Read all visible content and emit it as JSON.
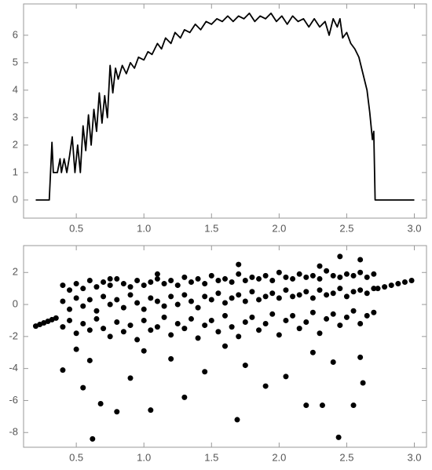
{
  "chart_data": [
    {
      "type": "line",
      "color": "#000000",
      "x": [
        0.2,
        0.3,
        0.32,
        0.33,
        0.36,
        0.38,
        0.39,
        0.41,
        0.43,
        0.45,
        0.47,
        0.49,
        0.51,
        0.53,
        0.55,
        0.57,
        0.59,
        0.61,
        0.63,
        0.65,
        0.67,
        0.69,
        0.71,
        0.73,
        0.75,
        0.77,
        0.79,
        0.81,
        0.84,
        0.87,
        0.9,
        0.93,
        0.96,
        1.0,
        1.03,
        1.06,
        1.1,
        1.13,
        1.16,
        1.2,
        1.23,
        1.27,
        1.3,
        1.34,
        1.38,
        1.42,
        1.46,
        1.5,
        1.54,
        1.58,
        1.62,
        1.66,
        1.7,
        1.74,
        1.78,
        1.82,
        1.86,
        1.9,
        1.94,
        1.98,
        2.02,
        2.06,
        2.1,
        2.14,
        2.18,
        2.22,
        2.26,
        2.3,
        2.34,
        2.37,
        2.4,
        2.43,
        2.45,
        2.47,
        2.5,
        2.53,
        2.56,
        2.59,
        2.62,
        2.65,
        2.67,
        2.69,
        2.7,
        2.71,
        3.0
      ],
      "values": [
        0,
        0,
        2.1,
        1.0,
        1.0,
        1.5,
        1.0,
        1.5,
        1.0,
        1.6,
        2.3,
        1.0,
        2.0,
        1.0,
        2.7,
        1.8,
        3.1,
        2.0,
        3.3,
        2.5,
        3.9,
        2.8,
        3.8,
        3.0,
        4.9,
        3.9,
        4.8,
        4.4,
        4.9,
        4.6,
        5.0,
        4.8,
        5.2,
        5.1,
        5.4,
        5.3,
        5.7,
        5.5,
        5.9,
        5.7,
        6.1,
        5.9,
        6.2,
        6.1,
        6.4,
        6.2,
        6.5,
        6.4,
        6.6,
        6.5,
        6.7,
        6.5,
        6.7,
        6.6,
        6.8,
        6.5,
        6.7,
        6.6,
        6.8,
        6.5,
        6.7,
        6.4,
        6.7,
        6.5,
        6.6,
        6.3,
        6.6,
        6.3,
        6.5,
        6.0,
        6.6,
        6.3,
        6.6,
        5.9,
        6.1,
        5.7,
        5.5,
        5.2,
        4.6,
        4.0,
        3.2,
        2.2,
        2.5,
        0,
        0
      ],
      "xlim": [
        0.11,
        3.09
      ],
      "ylim": [
        -0.66,
        7.14
      ],
      "xticks": [
        0.5,
        {
          "value": 1,
          "label": "1.0"
        },
        1.5,
        {
          "value": 2,
          "label": "2.0"
        },
        2.5,
        {
          "value": 3,
          "label": "3.0"
        }
      ],
      "yticks": [
        0,
        1,
        2,
        3,
        4,
        5,
        6
      ]
    },
    {
      "type": "scatter",
      "color": "#000000",
      "x": [
        0.4,
        0.45,
        0.5,
        0.55,
        0.6,
        0.65,
        0.7,
        0.75,
        0.8,
        0.85,
        0.9,
        0.95,
        1.0,
        1.05,
        1.1,
        1.15,
        1.2,
        1.25,
        1.3,
        1.35,
        1.4,
        1.45,
        1.5,
        1.55,
        1.6,
        1.65,
        1.7,
        1.75,
        1.8,
        1.85,
        1.9,
        1.95,
        2.0,
        2.05,
        2.1,
        2.15,
        2.2,
        2.25,
        2.3,
        2.35,
        2.4,
        2.45,
        2.5,
        2.55,
        2.6,
        2.65,
        2.7,
        0.4,
        0.45,
        0.5,
        0.55,
        0.6,
        0.65,
        0.7,
        0.75,
        0.8,
        0.85,
        0.9,
        0.95,
        1.0,
        1.05,
        1.1,
        1.15,
        1.2,
        1.25,
        1.3,
        1.35,
        1.4,
        1.45,
        1.5,
        1.55,
        1.6,
        1.65,
        1.7,
        1.75,
        1.8,
        1.85,
        1.9,
        1.95,
        2.0,
        2.05,
        2.1,
        2.15,
        2.2,
        2.25,
        2.3,
        2.35,
        2.4,
        2.45,
        2.5,
        2.55,
        2.6,
        2.65,
        2.7,
        0.4,
        0.45,
        0.5,
        0.55,
        0.6,
        0.65,
        0.7,
        0.75,
        0.8,
        0.85,
        0.9,
        0.95,
        1.0,
        1.05,
        1.1,
        1.15,
        1.2,
        1.25,
        1.3,
        1.35,
        1.4,
        1.45,
        1.5,
        1.55,
        1.6,
        1.65,
        1.7,
        1.75,
        1.8,
        1.85,
        1.9,
        1.95,
        2.0,
        2.05,
        2.1,
        2.15,
        2.2,
        2.25,
        2.3,
        2.35,
        2.4,
        2.45,
        2.5,
        2.55,
        2.6,
        2.65,
        2.7,
        0.2,
        0.23,
        0.26,
        0.29,
        0.32,
        0.35,
        2.73,
        2.78,
        2.83,
        2.88,
        2.93,
        2.98,
        0.62,
        2.44,
        1.69,
        0.8,
        1.05,
        0.68,
        2.2,
        2.32,
        2.55,
        1.3,
        0.55,
        0.9,
        1.45,
        1.9,
        2.62,
        0.4,
        0.6,
        1.2,
        1.75,
        2.05,
        2.4,
        0.5,
        1.0,
        1.6,
        2.25,
        2.6,
        2.45,
        2.6,
        1.7,
        2.3,
        0.75,
        1.1
      ],
      "values": [
        1.2,
        0.9,
        1.3,
        1.0,
        1.5,
        1.1,
        1.4,
        1.2,
        1.6,
        1.3,
        1.1,
        1.5,
        1.2,
        1.4,
        1.6,
        1.3,
        1.5,
        1.2,
        1.7,
        1.4,
        1.6,
        1.3,
        1.8,
        1.5,
        1.6,
        1.4,
        1.9,
        1.5,
        1.7,
        1.6,
        1.8,
        1.5,
        2.0,
        1.7,
        1.6,
        1.9,
        1.7,
        1.8,
        1.6,
        2.1,
        1.8,
        1.7,
        1.9,
        1.8,
        2.0,
        1.7,
        1.9,
        0.2,
        -0.3,
        0.4,
        -0.1,
        0.3,
        -0.4,
        0.5,
        0.0,
        0.3,
        -0.2,
        0.6,
        0.1,
        -0.3,
        0.4,
        0.2,
        -0.1,
        0.5,
        0.0,
        0.6,
        0.2,
        -0.2,
        0.5,
        0.3,
        0.7,
        0.1,
        0.4,
        0.6,
        0.2,
        0.8,
        0.3,
        0.5,
        0.7,
        0.4,
        0.9,
        0.5,
        0.6,
        0.8,
        0.4,
        0.9,
        0.6,
        0.7,
        1.0,
        0.5,
        0.8,
        0.9,
        0.7,
        1.0,
        -1.4,
        -1.0,
        -1.8,
        -1.2,
        -1.6,
        -0.9,
        -1.5,
        -2.0,
        -1.1,
        -1.7,
        -1.3,
        -2.2,
        -1.0,
        -1.6,
        -1.4,
        -0.8,
        -1.9,
        -1.2,
        -1.5,
        -0.9,
        -2.1,
        -1.3,
        -1.0,
        -1.7,
        -0.7,
        -1.4,
        -2.0,
        -1.1,
        -0.8,
        -1.6,
        -1.2,
        -0.6,
        -1.9,
        -1.0,
        -0.7,
        -1.5,
        -1.1,
        -0.5,
        -1.8,
        -0.9,
        -0.6,
        -1.3,
        -0.8,
        -0.4,
        -1.2,
        -0.7,
        -0.5,
        -1.35,
        -1.25,
        -1.15,
        -1.05,
        -0.95,
        -0.85,
        1.0,
        1.1,
        1.2,
        1.3,
        1.4,
        1.5,
        -8.4,
        -8.3,
        -7.2,
        -6.7,
        -6.6,
        -6.2,
        -6.3,
        -6.3,
        -6.3,
        -5.8,
        -5.2,
        -4.6,
        -4.2,
        -5.1,
        -4.9,
        -4.1,
        -3.5,
        -3.4,
        -3.8,
        -4.5,
        -3.6,
        -2.8,
        -2.9,
        -2.6,
        -3.0,
        -3.3,
        3.0,
        2.8,
        2.5,
        2.4,
        1.6,
        1.9
      ],
      "xlim": [
        0.11,
        3.09
      ],
      "ylim": [
        -8.92,
        3.68
      ],
      "xticks": [
        0.5,
        {
          "value": 1,
          "label": "1.0"
        },
        1.5,
        {
          "value": 2,
          "label": "2.0"
        },
        2.5,
        {
          "value": 3,
          "label": "3.0"
        }
      ],
      "yticks": [
        -8,
        -6,
        -4,
        -2,
        0,
        2
      ]
    }
  ]
}
